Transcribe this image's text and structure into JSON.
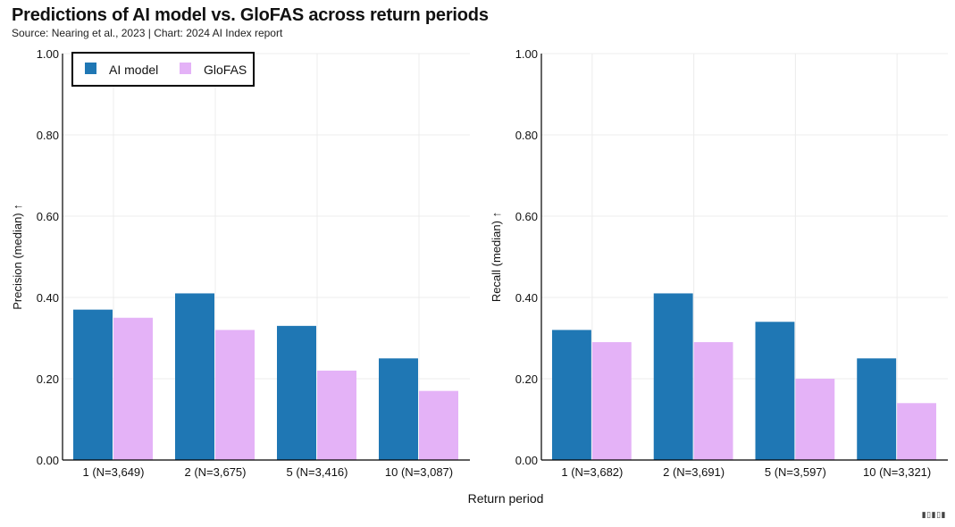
{
  "title": "Predictions of AI model vs. GloFAS across return periods",
  "subtitle": "Source: Nearing et al., 2023 | Chart: 2024 AI Index report",
  "colors": {
    "ai_model": "#1f77b4",
    "glofas": "#e4b2f7",
    "grid": "#ececec",
    "axis": "#000000"
  },
  "legend": {
    "items": [
      "AI model",
      "GloFAS"
    ]
  },
  "shared_xlabel": "Return period",
  "chart_data": [
    {
      "type": "bar",
      "title": "",
      "xlabel": "Return period",
      "ylabel": "Precision (median) ↑",
      "ylim": [
        0,
        1
      ],
      "yticks": [
        "0.00",
        "0.20",
        "0.40",
        "0.60",
        "0.80",
        "1.00"
      ],
      "categories": [
        "1 (N=3,649)",
        "2 (N=3,675)",
        "5 (N=3,416)",
        "10 (N=3,087)"
      ],
      "series": [
        {
          "name": "AI model",
          "values": [
            0.37,
            0.41,
            0.33,
            0.25
          ]
        },
        {
          "name": "GloFAS",
          "values": [
            0.35,
            0.32,
            0.22,
            0.17
          ]
        }
      ]
    },
    {
      "type": "bar",
      "title": "",
      "xlabel": "Return period",
      "ylabel": "Recall (median) ↑",
      "ylim": [
        0,
        1
      ],
      "yticks": [
        "0.00",
        "0.20",
        "0.40",
        "0.60",
        "0.80",
        "1.00"
      ],
      "categories": [
        "1 (N=3,682)",
        "2 (N=3,691)",
        "5 (N=3,597)",
        "10 (N=3,321)"
      ],
      "series": [
        {
          "name": "AI model",
          "values": [
            0.32,
            0.41,
            0.34,
            0.25
          ]
        },
        {
          "name": "GloFAS",
          "values": [
            0.29,
            0.29,
            0.2,
            0.14
          ]
        }
      ]
    }
  ]
}
